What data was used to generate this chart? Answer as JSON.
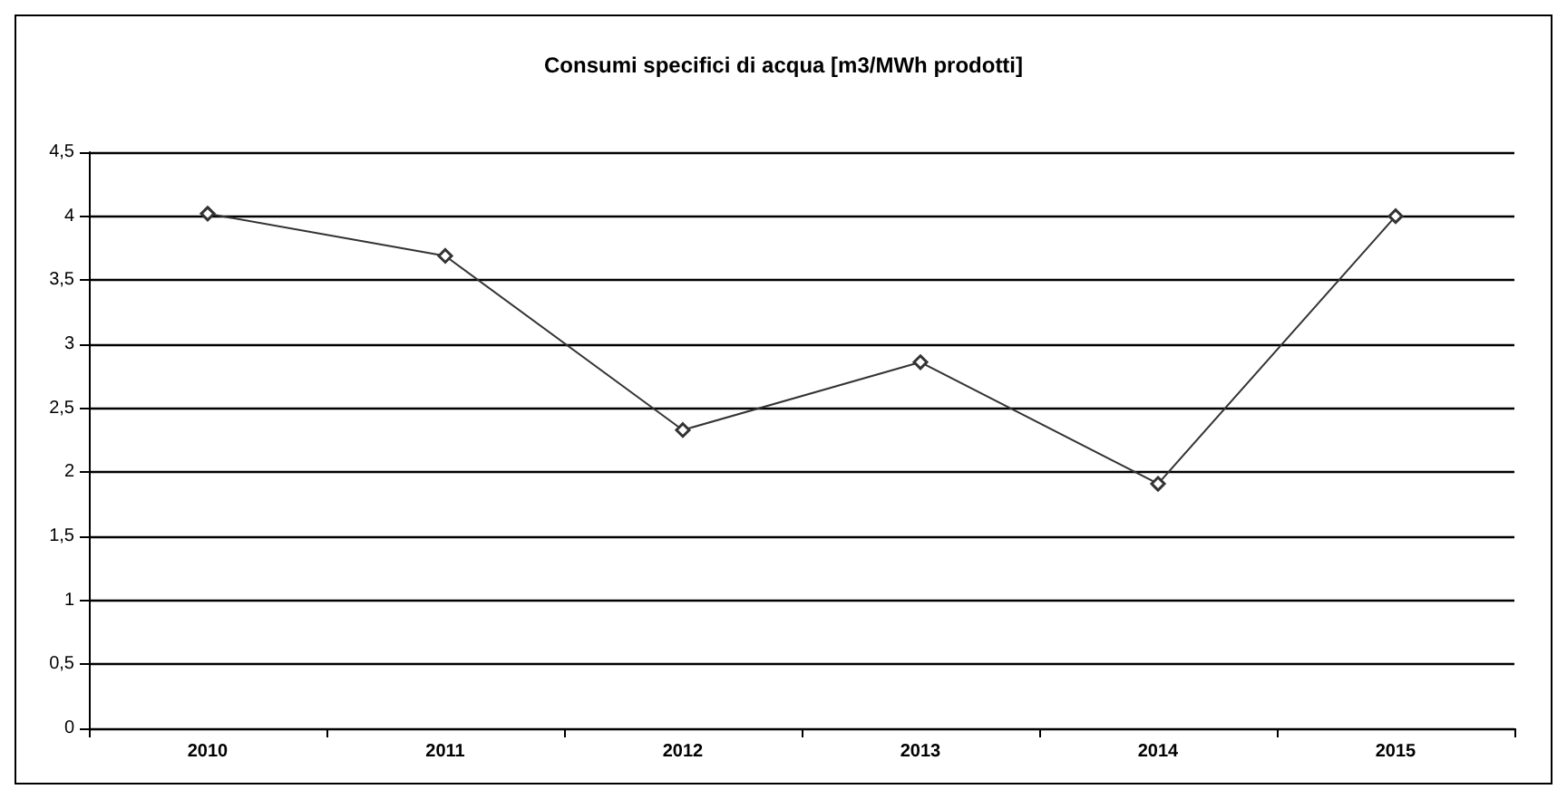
{
  "chart_data": {
    "type": "line",
    "title": "Consumi specifici di acqua [m3/MWh prodotti]",
    "categories": [
      "2010",
      "2011",
      "2012",
      "2013",
      "2014",
      "2015"
    ],
    "series": [
      {
        "color": "#333333",
        "values": [
          4.02,
          3.69,
          2.33,
          2.86,
          1.91,
          4.0
        ]
      }
    ],
    "ylim": [
      0,
      4.5
    ],
    "yticks": [
      {
        "value": 0,
        "label": "0"
      },
      {
        "value": 0.5,
        "label": "0,5"
      },
      {
        "value": 1,
        "label": "1"
      },
      {
        "value": 1.5,
        "label": "1,5"
      },
      {
        "value": 2,
        "label": "2"
      },
      {
        "value": 2.5,
        "label": "2,5"
      },
      {
        "value": 3,
        "label": "3"
      },
      {
        "value": 3.5,
        "label": "3,5"
      },
      {
        "value": 4,
        "label": "4"
      },
      {
        "value": 4.5,
        "label": "4,5"
      }
    ],
    "grid": "y",
    "marker": "diamond",
    "line_style": "solid"
  }
}
